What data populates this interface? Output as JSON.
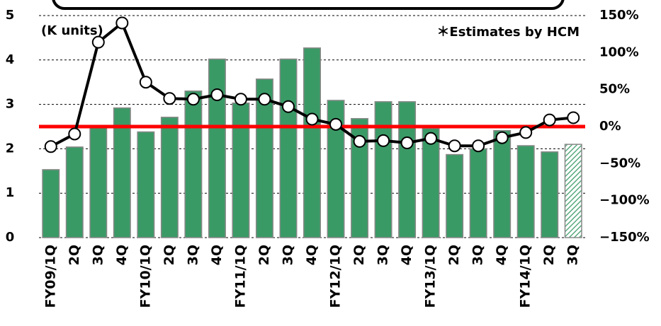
{
  "chart_data": {
    "type": "bar_line",
    "annotations": [
      "(K units)",
      "＊Estimates by HCM"
    ],
    "categories": [
      "FY09/1Q",
      "2Q",
      "3Q",
      "4Q",
      "FY10/1Q",
      "2Q",
      "3Q",
      "4Q",
      "FY11/1Q",
      "2Q",
      "3Q",
      "4Q",
      "FY12/1Q",
      "2Q",
      "3Q",
      "4Q",
      "FY13/1Q",
      "2Q",
      "3Q",
      "4Q",
      "FY14/1Q",
      "2Q",
      "3Q"
    ],
    "series": [
      {
        "type": "bar",
        "color": "#3a9a66",
        "hatched_last": true,
        "values": [
          1.53,
          2.04,
          2.52,
          2.92,
          2.38,
          2.71,
          3.3,
          4.02,
          3.03,
          3.57,
          4.02,
          4.27,
          3.09,
          2.68,
          3.06,
          3.06,
          2.46,
          1.87,
          2.0,
          2.41,
          2.07,
          1.93,
          2.1
        ]
      },
      {
        "type": "line",
        "axis": "y2",
        "color": "#000000",
        "values": [
          -27,
          -10,
          114,
          140,
          60,
          38,
          37,
          43,
          37,
          37,
          27,
          10,
          3,
          -20,
          -19,
          -22,
          -16,
          -26,
          -26,
          -15,
          -8,
          9,
          12
        ]
      }
    ],
    "ylim": [
      0,
      5
    ],
    "yticks": [
      0,
      1,
      2,
      3,
      4,
      5
    ],
    "y2lim": [
      -150,
      150
    ],
    "y2ticks": [
      {
        "value": -150,
        "label": "−150%"
      },
      {
        "value": -100,
        "label": "−100%"
      },
      {
        "value": -50,
        "label": "−50%"
      },
      {
        "value": 0,
        "label": "0%"
      },
      {
        "value": 50,
        "label": "50%"
      },
      {
        "value": 100,
        "label": "100%"
      },
      {
        "value": 150,
        "label": "150%"
      }
    ],
    "reference_line": {
      "value": 0,
      "axis": "y2",
      "color": "#ff0000"
    },
    "grid": true
  }
}
